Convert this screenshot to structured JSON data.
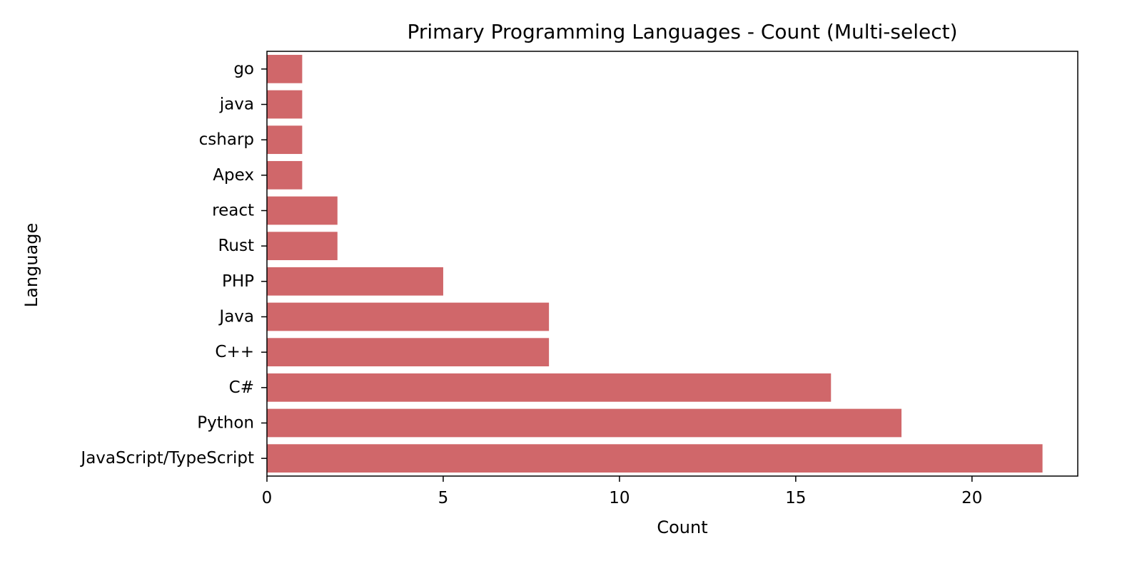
{
  "chart_data": {
    "type": "bar",
    "orientation": "horizontal",
    "title": "Primary Programming Languages - Count (Multi-select)",
    "xlabel": "Count",
    "ylabel": "Language",
    "categories": [
      "go",
      "java",
      "csharp",
      "Apex",
      "react",
      "Rust",
      "PHP",
      "Java",
      "C++",
      "C#",
      "Python",
      "JavaScript/TypeScript"
    ],
    "values": [
      1,
      1,
      1,
      1,
      2,
      2,
      5,
      8,
      8,
      16,
      18,
      22
    ],
    "xlim": [
      0,
      23
    ],
    "xticks": [
      0,
      5,
      10,
      15,
      20
    ],
    "grid": false,
    "legend": "none",
    "bar_color": "#d0676a"
  }
}
